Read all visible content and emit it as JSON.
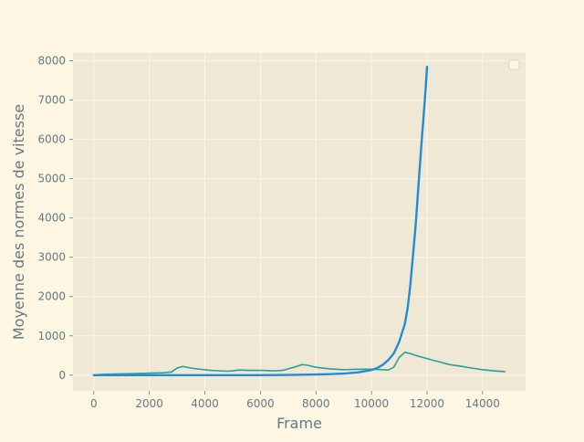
{
  "colors": {
    "figure_background": "#fdf6e3",
    "plot_background": "#eee8d5",
    "grid": "#fdf6e3",
    "text": "#657b83",
    "blue_series": "#268bd2",
    "teal_series": "#2aa198"
  },
  "chart_data": {
    "type": "line",
    "title": "",
    "xlabel": "Frame",
    "ylabel": "Moyenne des normes de vitesse",
    "xlim": [
      -750,
      15550
    ],
    "ylim": [
      -400,
      8200
    ],
    "xticks": [
      0,
      2000,
      4000,
      6000,
      8000,
      10000,
      12000,
      14000
    ],
    "yticks": [
      0,
      1000,
      2000,
      3000,
      4000,
      5000,
      6000,
      7000,
      8000
    ],
    "grid": true,
    "legend": "top-right, empty",
    "series": [
      {
        "color": "#2aa198",
        "x": [
          0,
          300,
          800,
          1500,
          2000,
          2500,
          2800,
          3000,
          3200,
          3600,
          4200,
          4800,
          5000,
          5200,
          5600,
          6000,
          6500,
          6800,
          7000,
          7300,
          7500,
          7700,
          8000,
          8500,
          9000,
          9500,
          10000,
          10400,
          10600,
          10800,
          11000,
          11200,
          11400,
          11600,
          11800,
          12000,
          12200,
          12500,
          12800,
          13200,
          13600,
          14000,
          14400,
          14800
        ],
        "y": [
          0,
          20,
          30,
          40,
          50,
          60,
          80,
          180,
          220,
          170,
          120,
          100,
          110,
          130,
          120,
          120,
          110,
          120,
          160,
          220,
          270,
          250,
          200,
          160,
          140,
          150,
          150,
          140,
          130,
          200,
          450,
          580,
          550,
          500,
          460,
          420,
          380,
          330,
          270,
          230,
          180,
          140,
          110,
          90
        ]
      },
      {
        "color": "#268bd2",
        "x": [
          0,
          2000,
          4000,
          6000,
          7000,
          8000,
          8500,
          9000,
          9500,
          10000,
          10200,
          10400,
          10600,
          10800,
          11000,
          11200,
          11300,
          11400,
          11500,
          11600,
          11700,
          11800,
          11900,
          11950,
          12000
        ],
        "y": [
          0,
          0,
          0,
          0,
          5,
          15,
          25,
          40,
          70,
          130,
          180,
          260,
          380,
          550,
          850,
          1300,
          1700,
          2300,
          3100,
          3900,
          4900,
          5900,
          6800,
          7300,
          7850
        ]
      }
    ]
  }
}
